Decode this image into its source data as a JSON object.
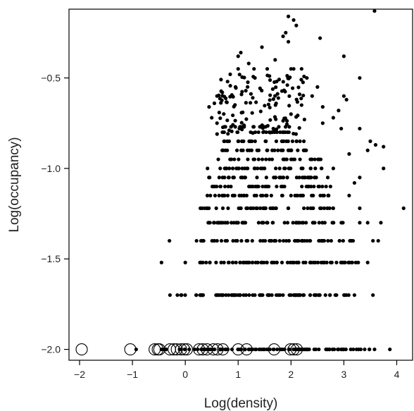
{
  "chart_data": {
    "type": "scatter",
    "title": "",
    "xlabel": "Log(density)",
    "ylabel": "Log(occupancy)",
    "xlim": [
      -2.2,
      4.3
    ],
    "ylim": [
      -2.06,
      -0.12
    ],
    "x_ticks": [
      -2,
      -1,
      0,
      1,
      2,
      3,
      4
    ],
    "x_tick_labels": [
      "−2",
      "−1",
      "0",
      "1",
      "2",
      "3",
      "4"
    ],
    "y_ticks": [
      -2.0,
      -1.5,
      -1.0,
      -0.5
    ],
    "y_tick_labels": [
      "−2.0",
      "−1.5",
      "−1.0",
      "−0.5"
    ],
    "grid": false,
    "legend": "none",
    "series": [
      {
        "marker": "open-circle",
        "color": "#000000",
        "points": [
          [
            -1.96,
            -2.0
          ],
          [
            -1.04,
            -2.0
          ],
          [
            -0.58,
            -2.0
          ],
          [
            -0.52,
            -2.0
          ],
          [
            -0.49,
            -2.0
          ],
          [
            -0.29,
            -2.0
          ],
          [
            -0.22,
            -2.0
          ],
          [
            -0.16,
            -2.0
          ],
          [
            -0.08,
            -2.0
          ],
          [
            -0.02,
            -2.0
          ],
          [
            0.03,
            -2.0
          ],
          [
            0.26,
            -2.0
          ],
          [
            0.33,
            -2.0
          ],
          [
            0.41,
            -2.0
          ],
          [
            0.53,
            -2.0
          ],
          [
            0.61,
            -2.0
          ],
          [
            0.71,
            -2.0
          ],
          [
            1.0,
            -2.0
          ],
          [
            1.16,
            -2.0
          ],
          [
            1.68,
            -2.0
          ],
          [
            1.99,
            -2.0
          ],
          [
            2.05,
            -2.0
          ],
          [
            2.11,
            -2.0
          ]
        ]
      },
      {
        "marker": "filled-dot",
        "color": "#000000",
        "bands": [
          {
            "y": -2.0,
            "x_min": -0.45,
            "x_max": 3.5,
            "n": 110
          },
          {
            "y": -1.7,
            "x_min": -0.1,
            "x_max": 3.1,
            "n": 85
          },
          {
            "y": -1.52,
            "x_min": 0.2,
            "x_max": 3.3,
            "n": 75
          },
          {
            "y": -1.4,
            "x_min": 0.2,
            "x_max": 3.2,
            "n": 65
          },
          {
            "y": -1.3,
            "x_min": 0.4,
            "x_max": 3.0,
            "n": 55
          },
          {
            "y": -1.22,
            "x_min": 0.2,
            "x_max": 2.9,
            "n": 48
          },
          {
            "y": -1.15,
            "x_min": 0.4,
            "x_max": 2.8,
            "n": 42
          },
          {
            "y": -1.1,
            "x_min": 0.5,
            "x_max": 2.8,
            "n": 40
          },
          {
            "y": -1.05,
            "x_min": 0.4,
            "x_max": 2.7,
            "n": 38
          },
          {
            "y": -1.0,
            "x_min": 0.4,
            "x_max": 2.6,
            "n": 35
          },
          {
            "y": -0.95,
            "x_min": 0.6,
            "x_max": 2.6,
            "n": 32
          },
          {
            "y": -0.9,
            "x_min": 0.6,
            "x_max": 2.4,
            "n": 28
          },
          {
            "y": -0.85,
            "x_min": 0.6,
            "x_max": 2.3,
            "n": 26
          },
          {
            "y": -0.8,
            "x_min": 0.7,
            "x_max": 2.0,
            "n": 22
          },
          {
            "y": -0.77,
            "x_min": 0.7,
            "x_max": 2.2,
            "n": 20
          }
        ],
        "points": [
          [
            -0.93,
            -2.0
          ],
          [
            -0.45,
            -2.0
          ],
          [
            3.58,
            -2.0
          ],
          [
            3.87,
            -2.0
          ],
          [
            -0.29,
            -1.7
          ],
          [
            -0.15,
            -1.7
          ],
          [
            3.2,
            -1.7
          ],
          [
            3.55,
            -1.7
          ],
          [
            0.0,
            -1.52
          ],
          [
            -0.45,
            -1.52
          ],
          [
            3.45,
            -1.52
          ],
          [
            -0.3,
            -1.4
          ],
          [
            3.55,
            -1.4
          ],
          [
            3.65,
            -1.4
          ],
          [
            3.3,
            -1.3
          ],
          [
            3.45,
            -1.3
          ],
          [
            3.7,
            -1.3
          ],
          [
            4.13,
            -1.22
          ],
          [
            3.3,
            -1.22
          ],
          [
            3.1,
            -1.15
          ],
          [
            3.2,
            -1.08
          ],
          [
            3.3,
            -1.05
          ],
          [
            2.8,
            -1.0
          ],
          [
            3.75,
            -1.0
          ],
          [
            3.1,
            -0.92
          ],
          [
            3.45,
            -0.9
          ],
          [
            3.6,
            -0.87
          ],
          [
            3.75,
            -0.88
          ],
          [
            3.5,
            -0.85
          ],
          [
            3.3,
            -0.78
          ],
          [
            2.6,
            -0.75
          ],
          [
            2.8,
            -0.72
          ],
          [
            2.9,
            -0.68
          ],
          [
            2.6,
            -0.66
          ],
          [
            2.95,
            -0.78
          ],
          [
            3.05,
            -0.62
          ],
          [
            3.0,
            -0.6
          ],
          [
            2.2,
            -0.65
          ],
          [
            2.0,
            -0.7
          ],
          [
            2.4,
            -0.6
          ],
          [
            2.5,
            -0.55
          ],
          [
            2.3,
            -0.5
          ],
          [
            3.3,
            -0.5
          ],
          [
            3.0,
            -0.38
          ],
          [
            2.55,
            -0.28
          ],
          [
            3.58,
            -0.13
          ],
          [
            1.95,
            -0.16
          ],
          [
            2.05,
            -0.18
          ],
          [
            2.1,
            -0.21
          ],
          [
            1.9,
            -0.25
          ],
          [
            1.85,
            -0.27
          ],
          [
            1.95,
            -0.3
          ],
          [
            1.7,
            -0.4
          ],
          [
            1.45,
            -0.33
          ],
          [
            1.05,
            -0.36
          ],
          [
            1.0,
            -0.38
          ],
          [
            0.85,
            -0.48
          ],
          [
            0.8,
            -0.52
          ],
          [
            0.95,
            -0.55
          ],
          [
            0.7,
            -0.58
          ],
          [
            0.6,
            -0.6
          ],
          [
            0.55,
            -0.64
          ],
          [
            0.45,
            -0.66
          ],
          [
            0.5,
            -0.72
          ],
          [
            0.6,
            -0.75
          ],
          [
            2.0,
            -0.45
          ],
          [
            2.05,
            -0.45
          ],
          [
            2.2,
            -0.45
          ],
          [
            1.55,
            -0.45
          ],
          [
            1.3,
            -0.45
          ],
          [
            1.0,
            -0.45
          ],
          [
            1.2,
            -0.42
          ]
        ],
        "cloud": {
          "x_min": 0.6,
          "x_max": 2.3,
          "y_min": -0.82,
          "y_max": -0.48,
          "n": 120
        }
      }
    ]
  }
}
